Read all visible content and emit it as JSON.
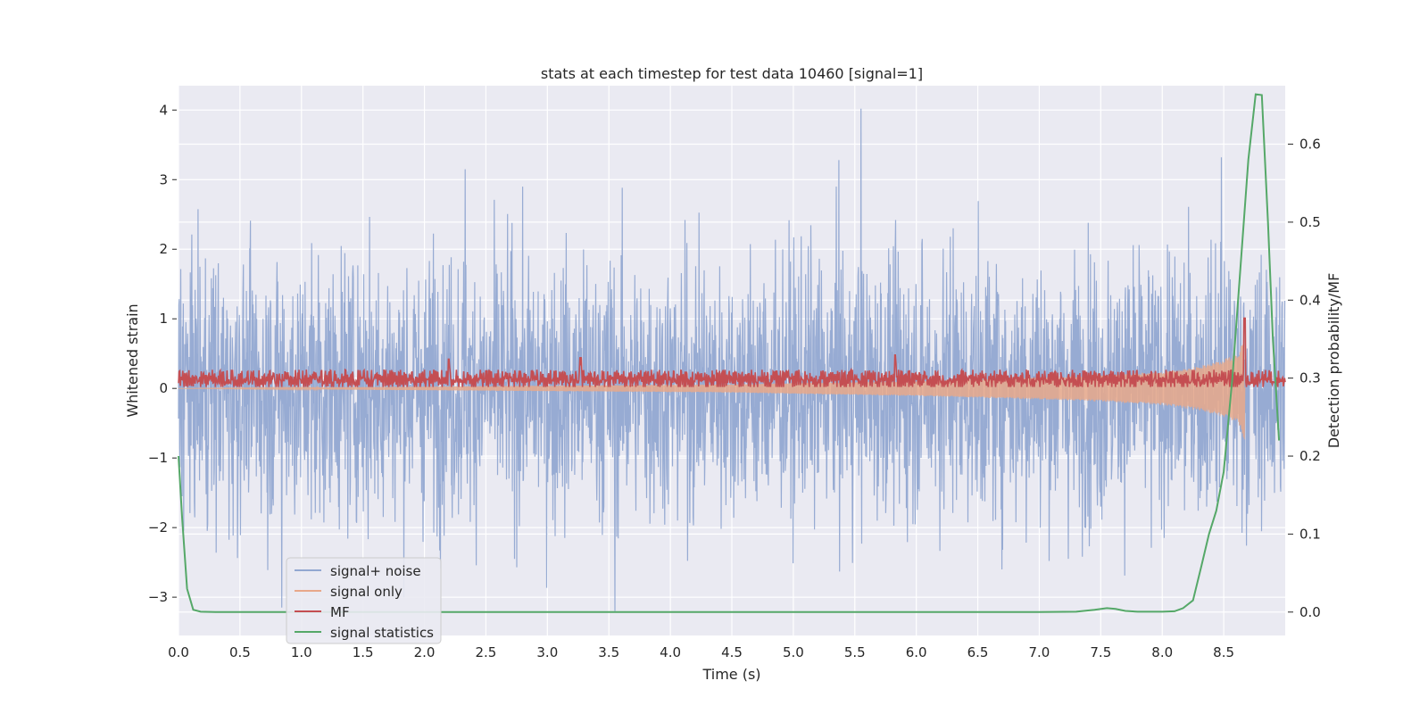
{
  "chart_data": {
    "type": "line",
    "title": "stats at each timestep for test data 10460 [signal=1]",
    "xlabel": "Time (s)",
    "ylabel": "Whitened strain",
    "y2label": "Detection probability/MF",
    "xlim": [
      0,
      9
    ],
    "ylim": [
      -3.55,
      4.35
    ],
    "y2lim": [
      -0.03,
      0.675
    ],
    "xticks": [
      "0.0",
      "0.5",
      "1.0",
      "1.5",
      "2.0",
      "2.5",
      "3.0",
      "3.5",
      "4.0",
      "4.5",
      "5.0",
      "5.5",
      "6.0",
      "6.5",
      "7.0",
      "7.5",
      "8.0",
      "8.5"
    ],
    "yticks": [
      "−3",
      "−2",
      "−1",
      "0",
      "1",
      "2",
      "3",
      "4"
    ],
    "y2ticks": [
      "0.0",
      "0.1",
      "0.2",
      "0.3",
      "0.4",
      "0.5",
      "0.6"
    ],
    "grid": true,
    "legend_position": "lower-left",
    "series": [
      {
        "name": "signal+ noise",
        "color": "#92a8d1",
        "axis": "left",
        "description_values": {
          "typical_range": [
            -2.0,
            2.2
          ],
          "max": 4.02,
          "max_at": 5.55,
          "min": -3.2,
          "min_at": 3.55
        }
      },
      {
        "name": "signal only",
        "color": "#e8a88a",
        "axis": "left",
        "envelope": [
          {
            "x": 4.5,
            "amp": 0.06
          },
          {
            "x": 5.0,
            "amp": 0.08
          },
          {
            "x": 6.0,
            "amp": 0.11
          },
          {
            "x": 7.0,
            "amp": 0.16
          },
          {
            "x": 7.5,
            "amp": 0.19
          },
          {
            "x": 8.0,
            "amp": 0.24
          },
          {
            "x": 8.3,
            "amp": 0.32
          },
          {
            "x": 8.5,
            "amp": 0.42
          },
          {
            "x": 8.62,
            "amp": 0.5
          },
          {
            "x": 8.67,
            "amp": 0.78
          }
        ]
      },
      {
        "name": "MF",
        "color": "#c44e52",
        "axis": "left",
        "description_values": {
          "baseline": 0.15,
          "peaks": [
            {
              "x": 2.2,
              "y": 0.42
            },
            {
              "x": 3.27,
              "y": 0.45
            },
            {
              "x": 5.83,
              "y": 0.48
            },
            {
              "x": 8.67,
              "y": 1.02
            }
          ]
        }
      },
      {
        "name": "signal statistics",
        "color": "#55a868",
        "axis": "right",
        "x": [
          0.0,
          0.03,
          0.07,
          0.12,
          0.18,
          0.3,
          1.0,
          2.0,
          3.0,
          4.0,
          5.0,
          6.0,
          7.0,
          7.3,
          7.45,
          7.55,
          7.62,
          7.7,
          7.8,
          8.0,
          8.1,
          8.17,
          8.25,
          8.32,
          8.38,
          8.44,
          8.5,
          8.57,
          8.64,
          8.7,
          8.76,
          8.81,
          8.86,
          8.9,
          8.95
        ],
        "values": [
          0.2,
          0.12,
          0.03,
          0.003,
          0.0005,
          0.0,
          0.0,
          0.0,
          0.0,
          0.0,
          0.0,
          0.0,
          0.0,
          0.0005,
          0.003,
          0.005,
          0.004,
          0.0015,
          0.0005,
          0.0005,
          0.001,
          0.005,
          0.015,
          0.06,
          0.1,
          0.13,
          0.18,
          0.3,
          0.45,
          0.58,
          0.664,
          0.663,
          0.5,
          0.35,
          0.22
        ]
      }
    ]
  }
}
